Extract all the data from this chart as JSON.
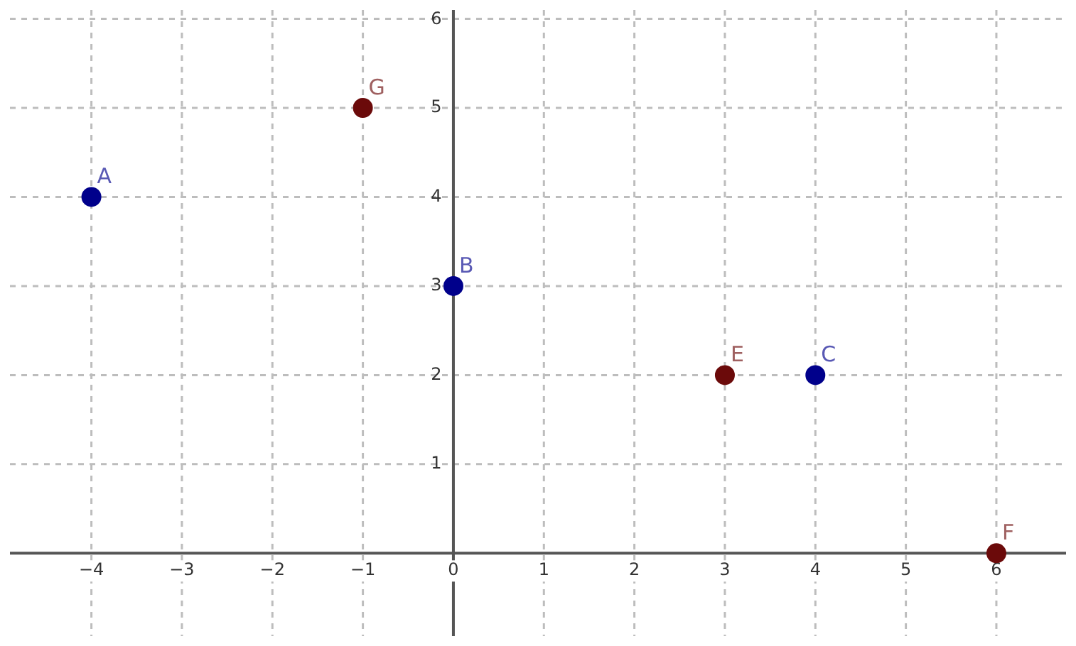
{
  "chart_data": {
    "type": "scatter",
    "series": [
      {
        "color": "#00008b",
        "x": [
          -4,
          0,
          4
        ],
        "values": [
          4,
          3,
          2
        ]
      },
      {
        "color": "#6b0a0a",
        "x": [
          -1,
          3,
          6
        ],
        "values": [
          5,
          2,
          0
        ]
      }
    ],
    "annotations": [
      {
        "text": "A",
        "x": -4,
        "y": 4
      },
      {
        "text": "B",
        "x": 0,
        "y": 3
      },
      {
        "text": "C",
        "x": 4,
        "y": 2
      },
      {
        "text": "E",
        "x": 3,
        "y": 2
      },
      {
        "text": "F",
        "x": 6,
        "y": 0
      },
      {
        "text": "G",
        "x": -1,
        "y": 5
      }
    ],
    "xlim": [
      -4.9,
      6.77
    ],
    "ylim": [
      -0.93,
      6.1
    ],
    "xticks": [
      -4,
      -3,
      -2,
      -1,
      0,
      1,
      2,
      3,
      4,
      5,
      6
    ],
    "yticks": [
      1,
      2,
      3,
      4,
      5,
      6
    ],
    "grid": true,
    "legend": false,
    "marker": "circle"
  }
}
